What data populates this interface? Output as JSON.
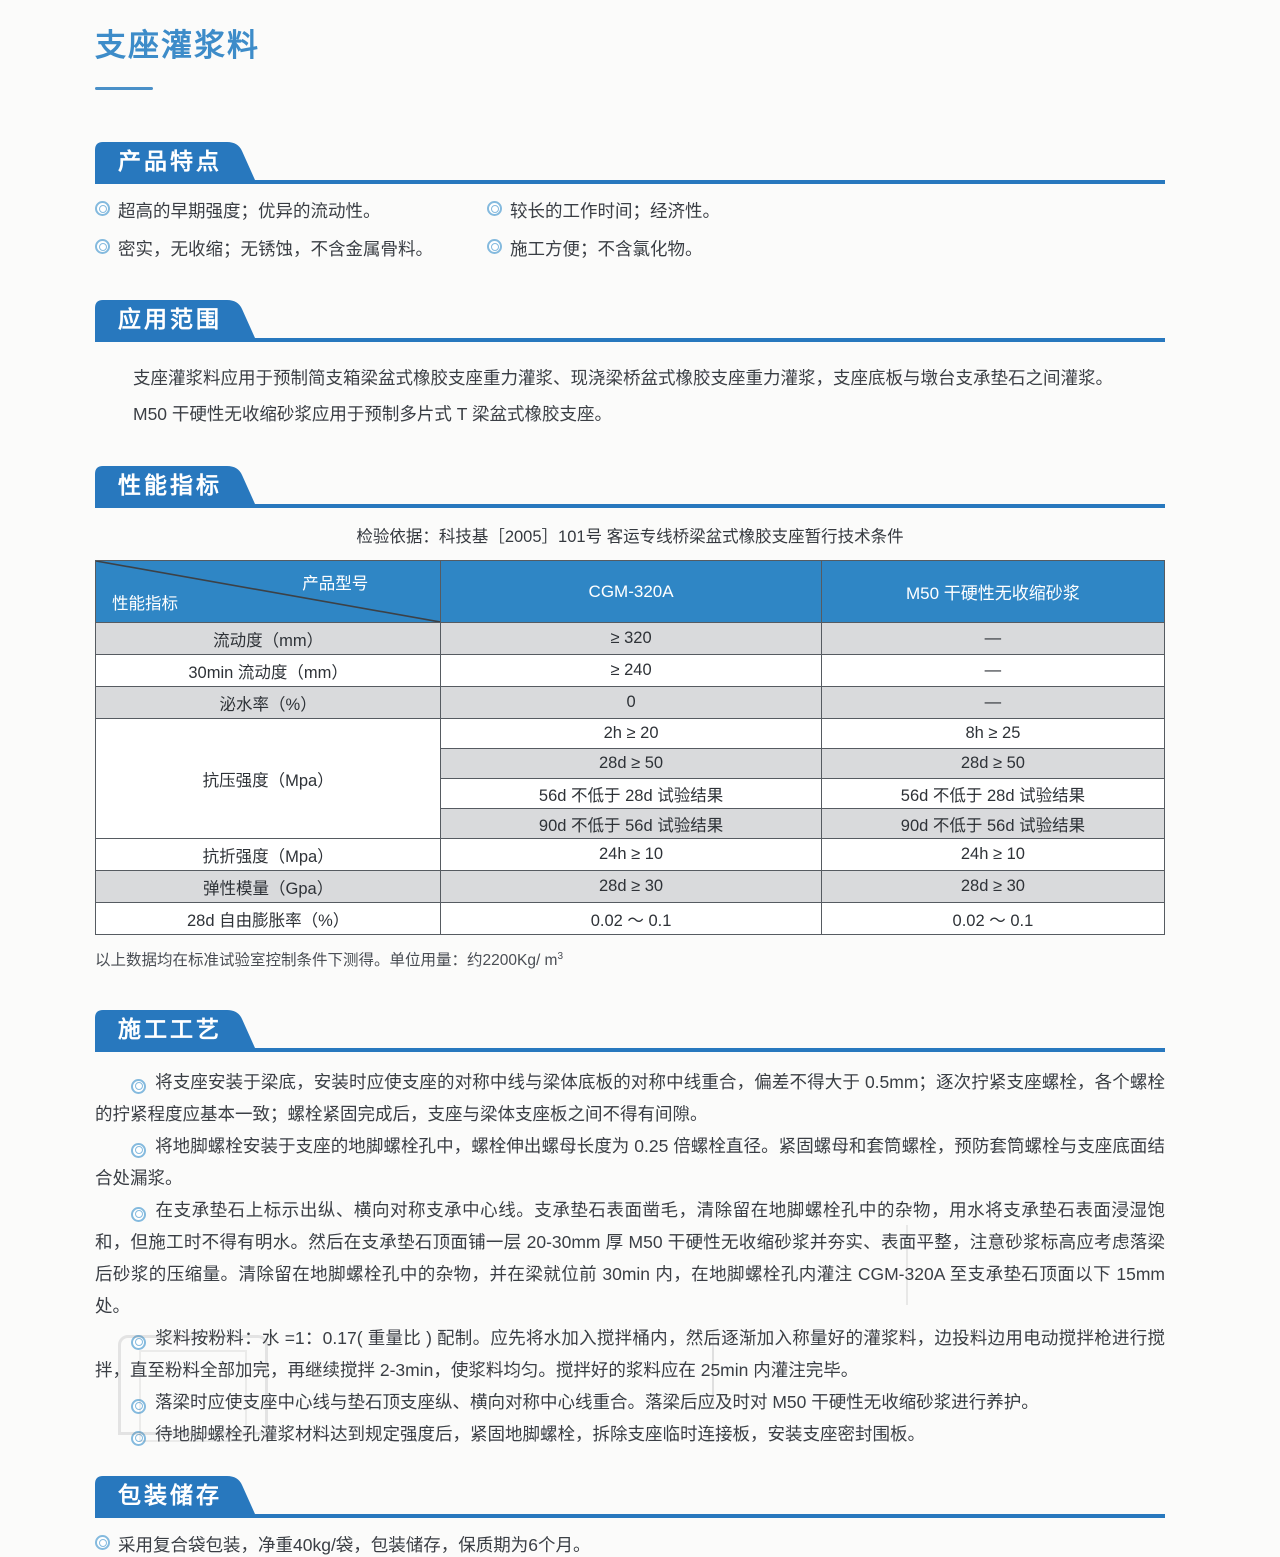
{
  "page": {
    "title": "支座灌浆料",
    "colors": {
      "accent_blue": "#2878be",
      "table_header_blue": "#2f86c5",
      "title_blue": "#3d8cc9",
      "row_shade_gray": "#d9dadc",
      "bullet_blue": "#84bade"
    }
  },
  "icons": {
    "bullet": "double-circle"
  },
  "sections": {
    "features": {
      "heading": "产品特点",
      "columns": [
        [
          "超高的早期强度；优异的流动性。",
          "密实，无收缩；无锈蚀，不含金属骨料。"
        ],
        [
          "较长的工作时间；经济性。",
          "施工方便；不含氯化物。"
        ]
      ]
    },
    "application": {
      "heading": "应用范围",
      "paragraphs": [
        "支座灌浆料应用于预制简支箱梁盆式橡胶支座重力灌浆、现浇梁桥盆式橡胶支座重力灌浆，支座底板与墩台支承垫石之间灌浆。",
        "M50 干硬性无收缩砂浆应用于预制多片式 T 梁盆式橡胶支座。"
      ]
    },
    "performance": {
      "heading": "性能指标",
      "basis": "检验依据：科技基［2005］101号 客运专线桥梁盆式橡胶支座暂行技术条件",
      "table": {
        "corner_top": "产品型号",
        "corner_bottom": "性能指标",
        "columns": [
          "CGM-320A",
          "M50 干硬性无收缩砂浆"
        ],
        "rows": [
          {
            "type": "simple",
            "label": "流动度（mm）",
            "values": [
              "≥ 320",
              "—"
            ],
            "shade": true
          },
          {
            "type": "simple",
            "label": "30min 流动度（mm）",
            "values": [
              "≥ 240",
              "—"
            ],
            "shade": false
          },
          {
            "type": "simple",
            "label": "泌水率（%）",
            "values": [
              "0",
              "—"
            ],
            "shade": true
          },
          {
            "type": "group",
            "label": "抗压强度（Mpa）",
            "subrows": [
              {
                "values": [
                  "2h ≥ 20",
                  "8h ≥ 25"
                ],
                "shade": false
              },
              {
                "values": [
                  "28d ≥ 50",
                  "28d ≥ 50"
                ],
                "shade": true
              },
              {
                "values": [
                  "56d 不低于 28d 试验结果",
                  "56d 不低于 28d 试验结果"
                ],
                "shade": false
              },
              {
                "values": [
                  "90d 不低于 56d 试验结果",
                  "90d 不低于 56d 试验结果"
                ],
                "shade": true
              }
            ]
          },
          {
            "type": "simple",
            "label": "抗折强度（Mpa）",
            "values": [
              "24h ≥ 10",
              "24h ≥ 10"
            ],
            "shade": false
          },
          {
            "type": "simple",
            "label": "弹性模量（Gpa）",
            "values": [
              "28d ≥ 30",
              "28d ≥ 30"
            ],
            "shade": true
          },
          {
            "type": "simple",
            "label": "28d 自由膨胀率（%）",
            "values": [
              "0.02 ～ 0.1",
              "0.02 ～ 0.1"
            ],
            "shade": false
          }
        ]
      },
      "footnote_text": "以上数据均在标准试验室控制条件下测得。单位用量：约2200Kg/ m",
      "footnote_sup": "3"
    },
    "construction": {
      "heading": "施工工艺",
      "paragraphs": [
        "将支座安装于梁底，安装时应使支座的对称中线与梁体底板的对称中线重合，偏差不得大于 0.5mm；逐次拧紧支座螺栓，各个螺栓的拧紧程度应基本一致；螺栓紧固完成后，支座与梁体支座板之间不得有间隙。",
        "将地脚螺栓安装于支座的地脚螺栓孔中，螺栓伸出螺母长度为 0.25 倍螺栓直径。紧固螺母和套筒螺栓，预防套筒螺栓与支座底面结合处漏浆。",
        "在支承垫石上标示出纵、横向对称支承中心线。支承垫石表面凿毛，清除留在地脚螺栓孔中的杂物，用水将支承垫石表面浸湿饱和，但施工时不得有明水。然后在支承垫石顶面铺一层 20-30mm 厚 M50 干硬性无收缩砂浆并夯实、表面平整，注意砂浆标高应考虑落梁后砂浆的压缩量。清除留在地脚螺栓孔中的杂物，并在梁就位前 30min 内，在地脚螺栓孔内灌注 CGM-320A 至支承垫石顶面以下 15mm 处。",
        "浆料按粉料：水 =1：0.17( 重量比 ) 配制。应先将水加入搅拌桶内，然后逐渐加入称量好的灌浆料，边投料边用电动搅拌枪进行搅拌，直至粉料全部加完，再继续搅拌 2-3min，使浆料均匀。搅拌好的浆料应在 25min 内灌注完毕。",
        "落梁时应使支座中心线与垫石顶支座纵、横向对称中心线重合。落梁后应及时对 M50 干硬性无收缩砂浆进行养护。",
        "待地脚螺栓孔灌浆材料达到规定强度后，紧固地脚螺栓，拆除支座临时连接板，安装支座密封围板。"
      ]
    },
    "packaging": {
      "heading": "包装储存",
      "bullets": [
        "采用复合袋包装，净重40kg/袋，包装储存，保质期为6个月。"
      ]
    }
  }
}
